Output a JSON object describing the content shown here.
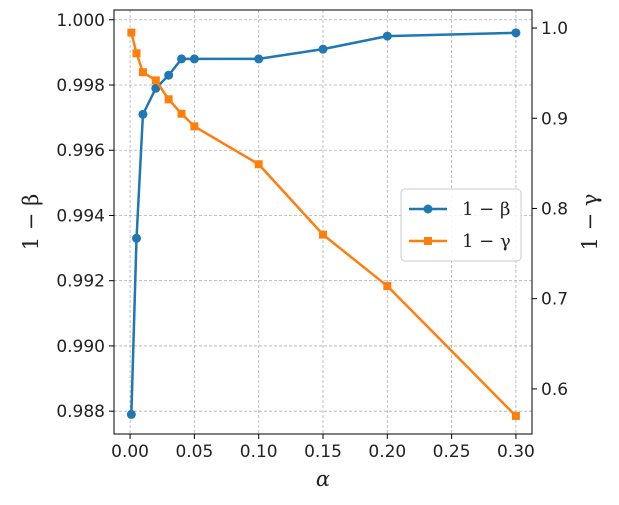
{
  "chart_data": {
    "type": "line",
    "xlabel": "α",
    "ylabel_left": "1 − β",
    "ylabel_right": "1 − γ",
    "xlim": [
      -0.0125,
      0.3125
    ],
    "ylim_left": [
      0.9873,
      1.0003
    ],
    "ylim_right": [
      0.55,
      1.02
    ],
    "x_ticks": [
      "0.00",
      "0.05",
      "0.10",
      "0.15",
      "0.20",
      "0.25",
      "0.30"
    ],
    "y_left_ticks": [
      "0.988",
      "0.990",
      "0.992",
      "0.994",
      "0.996",
      "0.998",
      "1.000"
    ],
    "y_right_ticks": [
      "0.6",
      "0.7",
      "0.8",
      "0.9",
      "1.0"
    ],
    "grid": true,
    "legend_position": "center-right",
    "series": [
      {
        "name": "1 − β",
        "axis": "left",
        "color": "#1f77b4",
        "marker": "circle",
        "points": [
          {
            "x": 0.001,
            "y": 0.9879
          },
          {
            "x": 0.005,
            "y": 0.9933
          },
          {
            "x": 0.01,
            "y": 0.9971
          },
          {
            "x": 0.02,
            "y": 0.9979
          },
          {
            "x": 0.03,
            "y": 0.9983
          },
          {
            "x": 0.04,
            "y": 0.9988
          },
          {
            "x": 0.05,
            "y": 0.9988
          },
          {
            "x": 0.1,
            "y": 0.9988
          },
          {
            "x": 0.15,
            "y": 0.9991
          },
          {
            "x": 0.2,
            "y": 0.9995
          },
          {
            "x": 0.3,
            "y": 0.9996
          }
        ]
      },
      {
        "name": "1 − γ",
        "axis": "right",
        "color": "#ff7f0e",
        "marker": "square",
        "points": [
          {
            "x": 0.001,
            "y": 0.995
          },
          {
            "x": 0.005,
            "y": 0.972
          },
          {
            "x": 0.01,
            "y": 0.951
          },
          {
            "x": 0.02,
            "y": 0.942
          },
          {
            "x": 0.03,
            "y": 0.921
          },
          {
            "x": 0.04,
            "y": 0.905
          },
          {
            "x": 0.05,
            "y": 0.891
          },
          {
            "x": 0.1,
            "y": 0.849
          },
          {
            "x": 0.15,
            "y": 0.771
          },
          {
            "x": 0.2,
            "y": 0.714
          },
          {
            "x": 0.3,
            "y": 0.57
          }
        ]
      }
    ]
  }
}
